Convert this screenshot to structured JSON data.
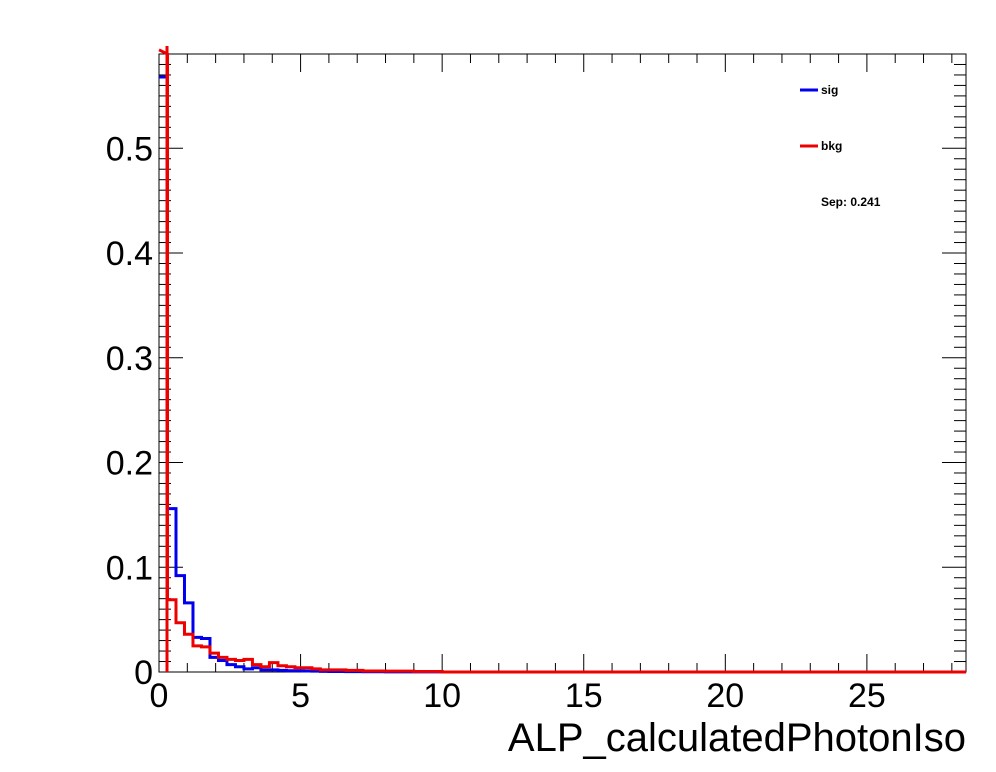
{
  "chart_data": {
    "type": "line",
    "title": "",
    "xlabel": "ALP_calculatedPhotonIso",
    "ylabel": "",
    "xlim": [
      0,
      28.5
    ],
    "ylim": [
      0,
      0.59
    ],
    "x_ticks": [
      "0",
      "5",
      "10",
      "15",
      "20",
      "25"
    ],
    "y_ticks": [
      "0",
      "0.1",
      "0.2",
      "0.3",
      "0.4",
      "0.5"
    ],
    "grid": false,
    "legend_position": "top-right",
    "annotation": "Sep: 0.241",
    "bin_edges": [
      0,
      0.3,
      0.6,
      0.9,
      1.2,
      1.5,
      1.8,
      2.1,
      2.4,
      2.7,
      3.0,
      3.3,
      3.6,
      3.9,
      4.2,
      4.5,
      4.8,
      5.1,
      5.4,
      5.7,
      6.0,
      6.6,
      7.2,
      8.0,
      9.0,
      10.0,
      28.5
    ],
    "series": [
      {
        "name": "sig",
        "color": "#0000ee",
        "values": [
          0.568,
          0.156,
          0.092,
          0.066,
          0.033,
          0.032,
          0.014,
          0.011,
          0.007,
          0.005,
          0.003,
          0.004,
          0.002,
          0.002,
          0.0015,
          0.0012,
          0.0012,
          0.001,
          0.0008,
          0.0006,
          0.0005,
          0.0003,
          0.0002,
          0.0001,
          0.0001,
          0.0
        ]
      },
      {
        "name": "bkg",
        "color": "#ee0000",
        "values": [
          0.594,
          0.069,
          0.047,
          0.036,
          0.025,
          0.024,
          0.018,
          0.014,
          0.012,
          0.011,
          0.012,
          0.007,
          0.005,
          0.009,
          0.006,
          0.005,
          0.004,
          0.004,
          0.003,
          0.002,
          0.002,
          0.0015,
          0.001,
          0.0008,
          0.0005,
          0.0
        ]
      }
    ]
  }
}
